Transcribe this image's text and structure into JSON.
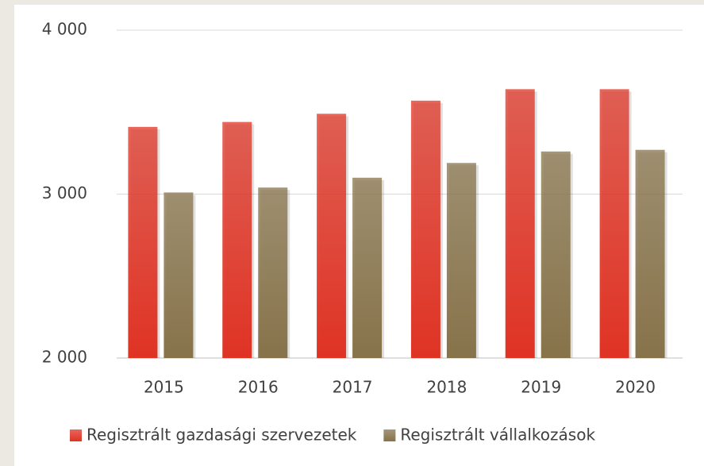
{
  "chart_data": {
    "type": "bar",
    "categories": [
      "2015",
      "2016",
      "2017",
      "2018",
      "2019",
      "2020"
    ],
    "series": [
      {
        "name": "Regisztrált gazdasági szervezetek",
        "color": "#df3324",
        "values": [
          3410,
          3440,
          3490,
          3570,
          3640,
          3640
        ]
      },
      {
        "name": "Regisztrált vállalkozások",
        "color": "#87734a",
        "values": [
          3010,
          3040,
          3100,
          3190,
          3260,
          3270
        ]
      }
    ],
    "ylim": [
      2000,
      4000
    ],
    "yticks": [
      {
        "value": 2000,
        "label": "2 000"
      },
      {
        "value": 3000,
        "label": "3 000"
      },
      {
        "value": 4000,
        "label": "4 000"
      }
    ],
    "grid": true,
    "legend": "bottom"
  }
}
